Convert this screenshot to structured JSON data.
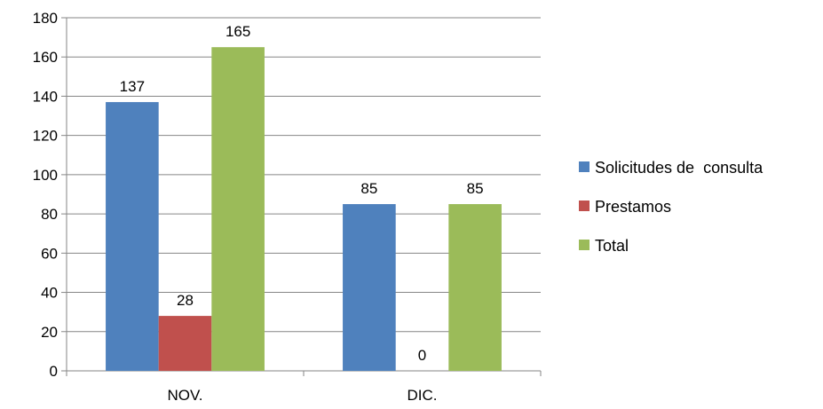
{
  "chart_data": {
    "type": "bar",
    "title": "",
    "xlabel": "",
    "ylabel": "",
    "categories": [
      "NOV.",
      "DIC."
    ],
    "series": [
      {
        "name": "Solicitudes de  consulta",
        "values": [
          137,
          85
        ],
        "color": "#4F81BD"
      },
      {
        "name": "Prestamos",
        "values": [
          28,
          0
        ],
        "color": "#C0504D"
      },
      {
        "name": "Total",
        "values": [
          165,
          85
        ],
        "color": "#9BBB59"
      }
    ],
    "ylim": [
      0,
      180
    ],
    "yticks": [
      0,
      20,
      40,
      60,
      80,
      100,
      120,
      140,
      160,
      180
    ],
    "grid": true,
    "legend_position": "right",
    "data_labels": true
  }
}
